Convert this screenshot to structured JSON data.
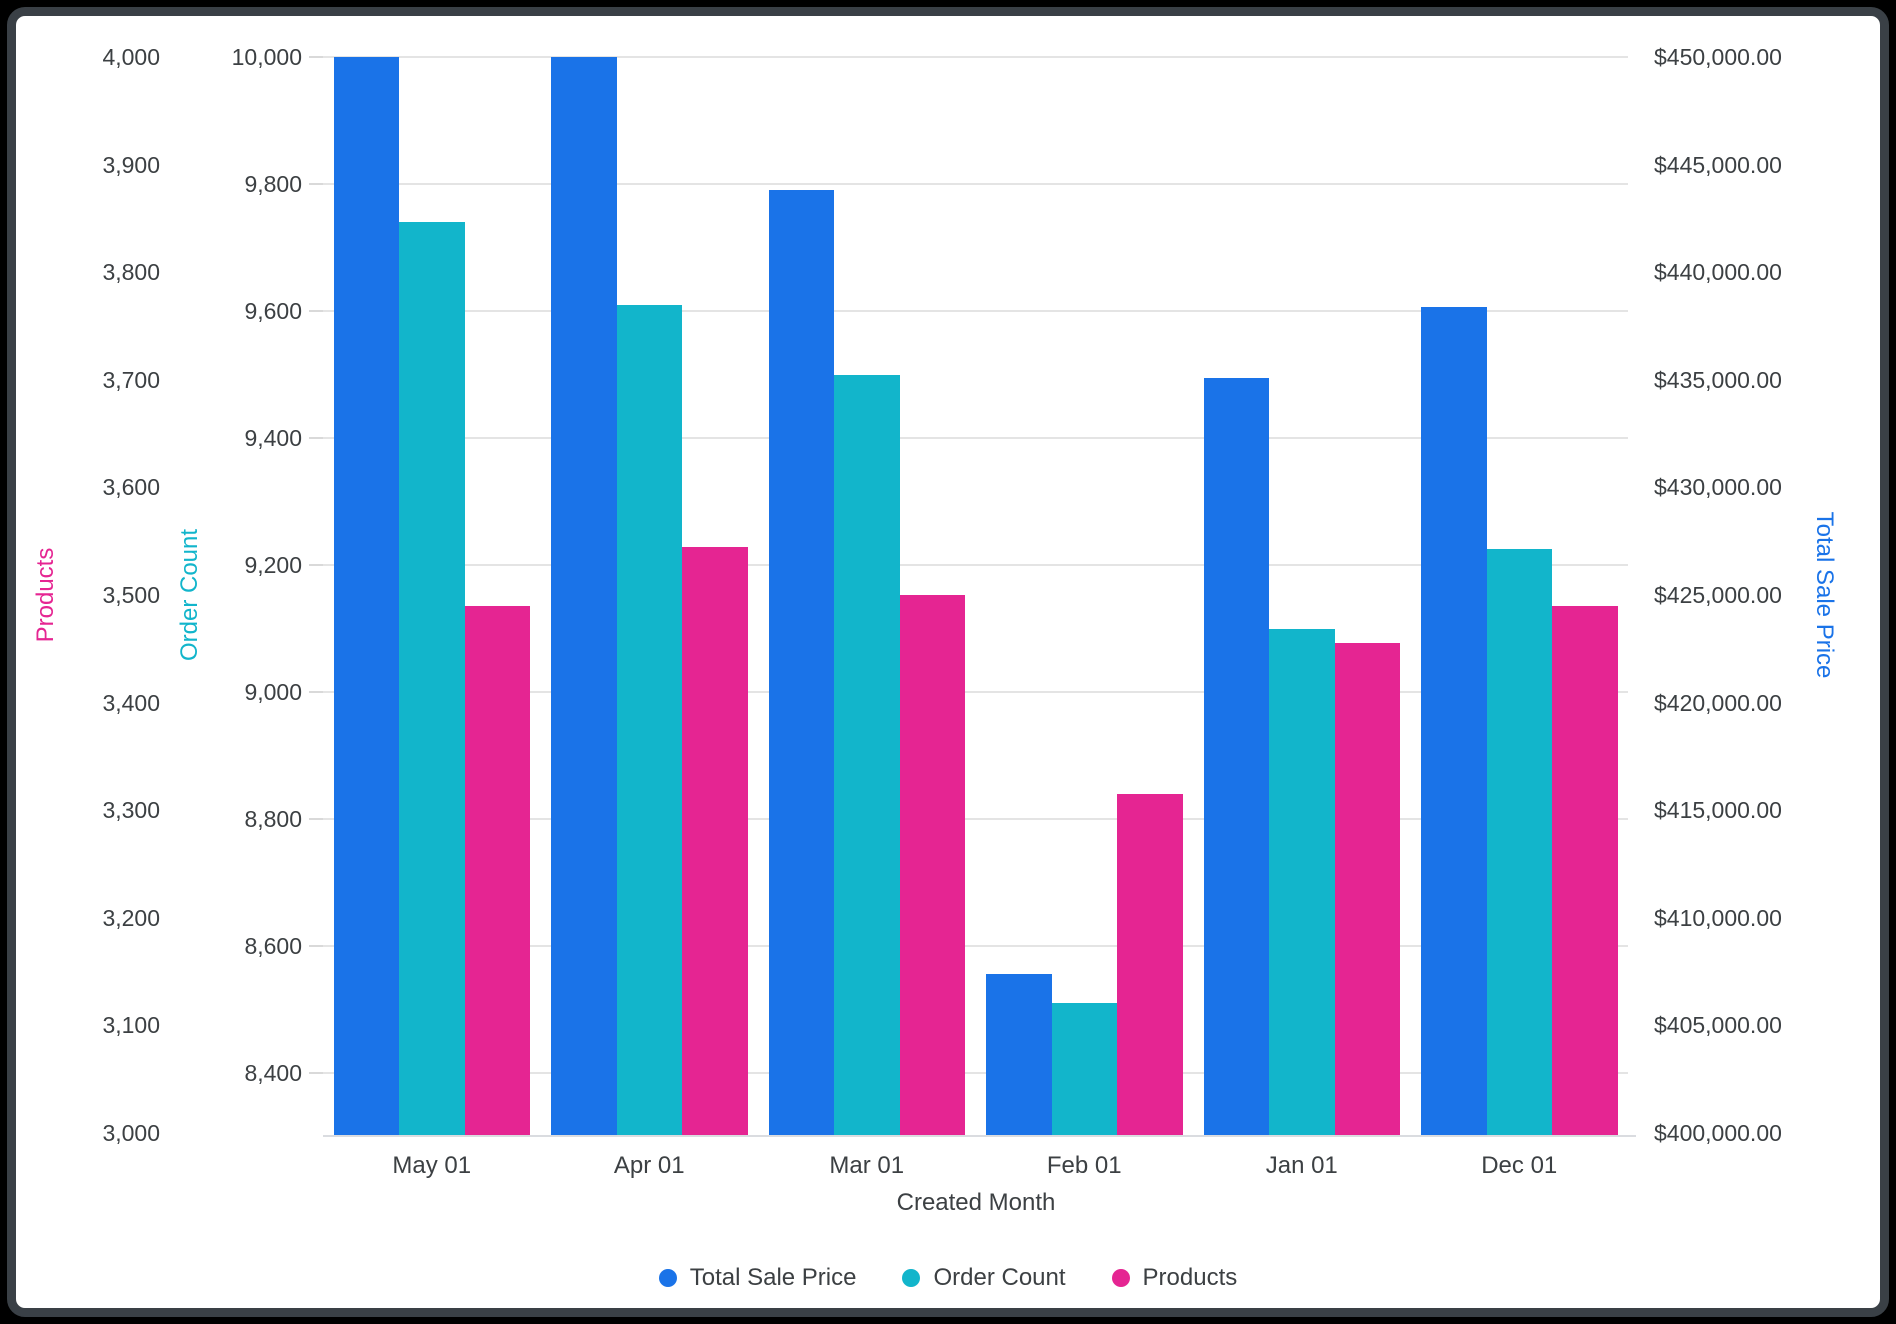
{
  "frame": {
    "page_background": "#000000",
    "card_background": "#ffffff",
    "card_border_color": "#3a4046"
  },
  "chart_data": {
    "type": "bar",
    "title": "",
    "categories": [
      "May 01",
      "Apr 01",
      "Mar 01",
      "Feb 01",
      "Jan 01",
      "Dec 01"
    ],
    "series": [
      {
        "name": "Total Sale Price",
        "axis": "sale",
        "color": "#1a73e8",
        "values": [
          450000,
          450000,
          443800,
          407400,
          435100,
          438400
        ]
      },
      {
        "name": "Order Count",
        "axis": "orders",
        "color": "#12b5cb",
        "values": [
          9740,
          9610,
          9500,
          8510,
          9100,
          9225
        ]
      },
      {
        "name": "Products",
        "axis": "products",
        "color": "#e52592",
        "values": [
          3490,
          3545,
          3500,
          3315,
          3455,
          3490
        ]
      }
    ],
    "axes": {
      "products": {
        "title": "Products",
        "color": "#e52592",
        "side": "left-outer",
        "min": 3000,
        "max": 4000,
        "tick_step": 100,
        "tick_labels": [
          "4,000",
          "3,900",
          "3,800",
          "3,700",
          "3,600",
          "3,500",
          "3,400",
          "3,300",
          "3,200",
          "3,100",
          "3,000"
        ]
      },
      "orders": {
        "title": "Order Count",
        "color": "#12b5cb",
        "side": "left-inner",
        "min": 8300,
        "max": 10000,
        "tick_step": 200,
        "tick_max": 10000,
        "tick_min": 8400,
        "gridlines": true,
        "tick_labels": [
          "10,000",
          "9,800",
          "9,600",
          "9,400",
          "9,200",
          "9,000",
          "8,800",
          "8,600",
          "8,400"
        ]
      },
      "sale": {
        "title": "Total Sale Price",
        "color": "#1a73e8",
        "side": "right",
        "min": 400000,
        "max": 450000,
        "tick_step": 5000,
        "tick_labels": [
          "$450,000.00",
          "$445,000.00",
          "$440,000.00",
          "$435,000.00",
          "$430,000.00",
          "$425,000.00",
          "$420,000.00",
          "$415,000.00",
          "$410,000.00",
          "$405,000.00",
          "$400,000.00"
        ]
      }
    },
    "xlabel": "Created Month",
    "legend": [
      "Total Sale Price",
      "Order Count",
      "Products"
    ],
    "legend_position": "bottom",
    "grid_color": "#e4e4e4",
    "axis_line_color": "#dadce0",
    "tick_text_color": "#3c4043"
  }
}
